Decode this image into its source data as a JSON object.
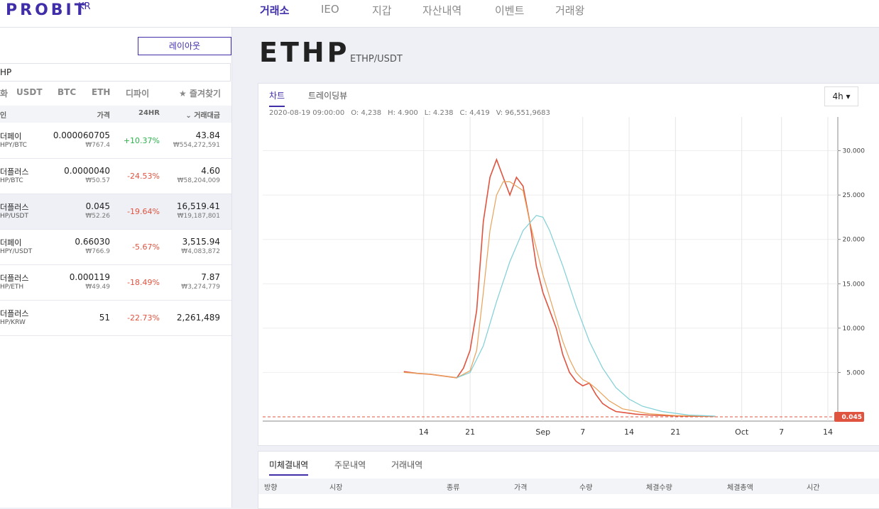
{
  "header": {
    "logo": "PROBIT",
    "logo_suffix": "KR",
    "nav": [
      "거래소",
      "IEO",
      "지갑",
      "자산내역",
      "이벤트",
      "거래왕"
    ]
  },
  "sidebar": {
    "layout_button": "레이아웃",
    "search": "HP",
    "tabs": [
      "화",
      "USDT",
      "BTC",
      "ETH",
      "디파이",
      "★ 즐겨찾기"
    ],
    "columns": [
      "인",
      "가격",
      "24HR",
      "⌄ 거래대금"
    ],
    "rows": [
      {
        "name": "더페이",
        "pair": "HPY/BTC",
        "price": "0.000060705",
        "krw": "₩767.4",
        "change": "+10.37%",
        "volume": "43.84",
        "volume_krw": "₩554,272,591"
      },
      {
        "name": "더플러스",
        "pair": "HP/BTC",
        "price": "0.0000040",
        "krw": "₩50.57",
        "change": "-24.53%",
        "volume": "4.60",
        "volume_krw": "₩58,204,009"
      },
      {
        "name": "더플러스",
        "pair": "HP/USDT",
        "price": "0.045",
        "krw": "₩52.26",
        "change": "-19.64%",
        "volume": "16,519.41",
        "volume_krw": "₩19,187,801"
      },
      {
        "name": "더페이",
        "pair": "HPY/USDT",
        "price": "0.66030",
        "krw": "₩766.9",
        "change": "-5.67%",
        "volume": "3,515.94",
        "volume_krw": "₩4,083,872"
      },
      {
        "name": "더플러스",
        "pair": "HP/ETH",
        "price": "0.000119",
        "krw": "₩49.49",
        "change": "-18.49%",
        "volume": "7.87",
        "volume_krw": "₩3,274,779"
      },
      {
        "name": "더플러스",
        "pair": "HP/KRW",
        "price": "51",
        "krw": "",
        "change": "-22.73%",
        "volume": "2,261,489",
        "volume_krw": ""
      }
    ]
  },
  "market": {
    "symbol": "ETHP",
    "pair": "ETHP/USDT",
    "tabs": [
      "차트",
      "트레이딩뷰"
    ],
    "interval": "4h ▾",
    "ohlc": [
      "2020-08-19 09:00:00",
      "O: 4,238",
      "H: 4.900",
      "L: 4.238",
      "C: 4,419",
      "V: 96,551,9683"
    ],
    "last_price": "0.045"
  },
  "chart_data": {
    "type": "line",
    "xlim": [
      -10.3,
      76.5
    ],
    "ylim": [
      -480,
      33800
    ],
    "xticks": [
      {
        "value": 14,
        "label": "14"
      },
      {
        "value": 21,
        "label": "21"
      },
      {
        "value": 32,
        "label": "Sep"
      },
      {
        "value": 38,
        "label": "7"
      },
      {
        "value": 45,
        "label": "14"
      },
      {
        "value": 52,
        "label": "21"
      },
      {
        "value": 62,
        "label": "Oct"
      },
      {
        "value": 68,
        "label": "7"
      },
      {
        "value": 75,
        "label": "14"
      }
    ],
    "yticks": [
      {
        "value": 5000,
        "label": "5.000"
      },
      {
        "value": 10000,
        "label": "10.000"
      },
      {
        "value": 15000,
        "label": "15.000"
      },
      {
        "value": 20000,
        "label": "20.000"
      },
      {
        "value": 25000,
        "label": "25.000"
      },
      {
        "value": 30000,
        "label": "30.000"
      }
    ],
    "grid": true,
    "series": [
      {
        "color": "#e0533f",
        "x": [
          11,
          13,
          15,
          17,
          19,
          20,
          21,
          22,
          23,
          24,
          25,
          26,
          27,
          28,
          29,
          30,
          31,
          32,
          33,
          34,
          35,
          36,
          37,
          38,
          39,
          40,
          41,
          42,
          43,
          44,
          46,
          48,
          50,
          52,
          55,
          58
        ],
        "values": [
          5100,
          4900,
          4800,
          4600,
          4400,
          5500,
          7500,
          12000,
          22000,
          27000,
          29000,
          27000,
          25000,
          27000,
          26000,
          22000,
          17000,
          14000,
          12000,
          10000,
          7000,
          5000,
          4000,
          3500,
          3800,
          2500,
          1500,
          1000,
          600,
          500,
          300,
          200,
          150,
          100,
          60,
          45
        ]
      },
      {
        "color": "#e8a25a",
        "x": [
          11,
          15,
          19,
          21,
          22,
          23,
          24,
          25,
          26,
          27,
          28,
          29,
          30,
          31,
          32,
          33,
          34,
          35,
          36,
          37,
          38,
          39,
          40,
          42,
          44,
          48,
          52,
          58
        ],
        "values": [
          5000,
          4800,
          4400,
          5200,
          7500,
          14000,
          21000,
          25000,
          26500,
          26500,
          26000,
          25500,
          22000,
          19000,
          16000,
          13500,
          11000,
          8500,
          6500,
          5000,
          4200,
          3800,
          3200,
          1800,
          900,
          350,
          150,
          50
        ]
      },
      {
        "color": "#7fcfd6",
        "x": [
          19,
          21,
          23,
          25,
          27,
          29,
          31,
          32,
          33,
          35,
          37,
          39,
          41,
          43,
          45,
          47,
          50,
          54,
          58
        ],
        "values": [
          4400,
          5000,
          8000,
          13000,
          17500,
          21000,
          22700,
          22500,
          21000,
          17000,
          12500,
          8500,
          5500,
          3300,
          2000,
          1200,
          600,
          200,
          80
        ]
      }
    ]
  },
  "orders": {
    "tabs": [
      "미체결내역",
      "주문내역",
      "거래내역"
    ],
    "columns": [
      "방향",
      "시장",
      "종류",
      "가격",
      "수량",
      "체결수량",
      "체결총액",
      "시간"
    ]
  }
}
